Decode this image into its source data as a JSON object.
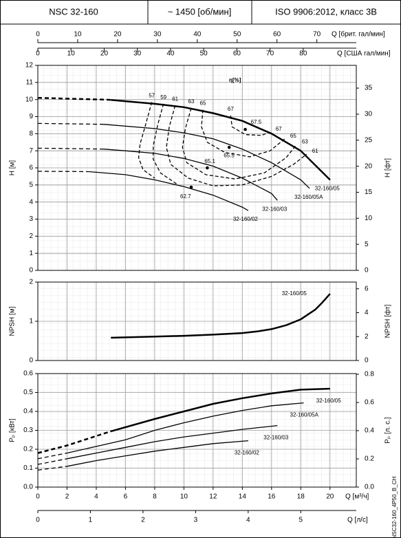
{
  "header": {
    "model": "NSC 32-160",
    "speed": "~ 1450 [об/мин]",
    "standard": "ISO 9906:2012, класс 3B"
  },
  "code": "NSC32-160_4P50_B_CH",
  "x_axes": {
    "primary": {
      "label": "Q [м³/ч]",
      "xlim": [
        0,
        21.8
      ],
      "xticks": [
        0,
        2,
        4,
        6,
        8,
        10,
        12,
        14,
        16,
        18,
        20
      ]
    },
    "top": [
      {
        "label": "Q [брит. гал/мин]",
        "xlim": [
          0,
          79.9
        ],
        "xticks": [
          0,
          10,
          20,
          30,
          40,
          50,
          60,
          70
        ]
      },
      {
        "label": "Q [США гал/мин]",
        "xlim": [
          0,
          96.0
        ],
        "xticks": [
          0,
          10,
          20,
          30,
          40,
          50,
          60,
          70,
          80
        ]
      }
    ],
    "bottom": [
      {
        "label": "Q [л/с]",
        "xlim": [
          0,
          6.056
        ],
        "xticks": [
          0,
          1,
          2,
          3,
          4,
          5
        ]
      }
    ]
  },
  "chart_data": [
    {
      "type": "line",
      "ylabel": "H [м]",
      "ylim": [
        0,
        12
      ],
      "yticks": [
        0,
        1,
        2,
        3,
        4,
        5,
        6,
        7,
        8,
        9,
        10,
        11,
        12
      ],
      "y2label": "H [фт]",
      "y2lim": [
        0,
        39.37
      ],
      "y2ticks": [
        0,
        5,
        10,
        15,
        20,
        25,
        30,
        35
      ],
      "grid": true,
      "series": [
        {
          "color": "#000000",
          "style": "dashed",
          "width": 2.5,
          "x": [
            0,
            2,
            4.5,
            5
          ],
          "values": [
            10.1,
            10.05,
            10.0,
            9.98
          ]
        },
        {
          "name": "32-160/05",
          "color": "#000000",
          "style": "solid",
          "width": 2.5,
          "x": [
            5,
            8,
            10,
            12,
            14,
            16,
            18,
            20
          ],
          "values": [
            9.98,
            9.75,
            9.55,
            9.2,
            8.75,
            8.0,
            7.0,
            5.3
          ]
        },
        {
          "color": "#000000",
          "style": "dashed",
          "width": 1.3,
          "x": [
            0,
            2,
            4.5
          ],
          "values": [
            8.6,
            8.58,
            8.55
          ]
        },
        {
          "name": "32-160/05A",
          "color": "#000000",
          "style": "solid",
          "width": 1.3,
          "x": [
            4.5,
            8,
            10,
            12,
            14,
            16,
            18,
            18.6
          ],
          "values": [
            8.55,
            8.3,
            8.05,
            7.7,
            7.1,
            6.3,
            5.3,
            4.8
          ]
        },
        {
          "color": "#000000",
          "style": "dashed",
          "width": 1.3,
          "x": [
            0,
            2,
            4.5
          ],
          "values": [
            7.15,
            7.13,
            7.1
          ]
        },
        {
          "name": "32-160/03",
          "color": "#000000",
          "style": "solid",
          "width": 1.3,
          "x": [
            4.5,
            6,
            8,
            10,
            12,
            14,
            16,
            16.4
          ],
          "values": [
            7.1,
            7.0,
            6.85,
            6.55,
            6.1,
            5.4,
            4.5,
            4.1
          ]
        },
        {
          "color": "#000000",
          "style": "dashed",
          "width": 1.3,
          "x": [
            0,
            2,
            3.5
          ],
          "values": [
            5.8,
            5.79,
            5.78
          ]
        },
        {
          "name": "32-160/02",
          "color": "#000000",
          "style": "solid",
          "width": 1.3,
          "x": [
            3.5,
            6,
            8,
            10,
            12,
            14,
            14.4
          ],
          "values": [
            5.78,
            5.6,
            5.3,
            4.9,
            4.4,
            3.7,
            3.5
          ]
        }
      ],
      "efficiency": {
        "label": "η[%]",
        "color": "#000000",
        "contours": [
          {
            "value": 57,
            "x": [
              7.8,
              7.4,
              7.0,
              6.9,
              7.2,
              8.0
            ],
            "y": [
              9.85,
              8.6,
              7.4,
              6.6,
              5.9,
              5.4
            ]
          },
          {
            "value": 59,
            "x": [
              8.6,
              8.2,
              7.9,
              7.9,
              8.4,
              9.6
            ],
            "y": [
              9.75,
              8.5,
              7.3,
              6.5,
              5.7,
              5.0
            ]
          },
          {
            "value": 61,
            "x": [
              9.4,
              9.0,
              8.8,
              9.1,
              10.3,
              12.0,
              14.0,
              16.0,
              17.5,
              18.4
            ],
            "y": [
              9.65,
              8.4,
              7.2,
              6.2,
              5.4,
              4.95,
              5.0,
              5.5,
              6.2,
              6.8
            ]
          },
          {
            "value": 63,
            "x": [
              10.5,
              10.1,
              9.9,
              10.2,
              11.5,
              13.5,
              15.5,
              17.0,
              17.7
            ],
            "y": [
              9.5,
              8.3,
              7.2,
              6.3,
              5.6,
              5.35,
              5.7,
              6.6,
              7.35
            ]
          },
          {
            "value": 65,
            "x": [
              11.3,
              11.2,
              11.6,
              12.8,
              14.5,
              15.9,
              16.9
            ],
            "y": [
              9.4,
              8.4,
              7.5,
              6.9,
              6.65,
              7.0,
              7.7
            ]
          },
          {
            "value": 67,
            "x": [
              13.2,
              13.3,
              14.2,
              15.3,
              15.9
            ],
            "y": [
              9.06,
              8.4,
              7.95,
              7.9,
              8.1
            ]
          }
        ],
        "points": [
          {
            "value": 67.5,
            "x": 14.2,
            "y": 8.25
          },
          {
            "value": 65.5,
            "x": 13.1,
            "y": 7.2
          },
          {
            "value": 65.1,
            "x": 11.6,
            "y": 6.0
          },
          {
            "value": 62.7,
            "x": 10.5,
            "y": 4.87
          }
        ]
      }
    },
    {
      "type": "line",
      "ylabel": "NPSH [м]",
      "ylim": [
        0,
        2
      ],
      "yticks": [
        0,
        1,
        2
      ],
      "y2label": "NPSH [фт]",
      "y2lim": [
        0,
        6.56
      ],
      "y2ticks": [
        0,
        2,
        4,
        6
      ],
      "grid": true,
      "series": [
        {
          "name": "32-160/05",
          "color": "#000000",
          "style": "solid",
          "width": 2.5,
          "x": [
            5,
            8,
            10,
            12,
            14,
            15,
            16,
            17,
            18,
            19,
            19.4,
            20
          ],
          "values": [
            0.58,
            0.61,
            0.63,
            0.66,
            0.7,
            0.74,
            0.8,
            0.9,
            1.05,
            1.3,
            1.45,
            1.7
          ]
        }
      ]
    },
    {
      "type": "line",
      "ylabel": "Pₚ [кВт]",
      "ylim": [
        0,
        0.6
      ],
      "yticks": [
        {
          "value": 0,
          "label": "0.0"
        },
        0.1,
        0.2,
        0.3,
        0.4,
        0.5,
        0.6
      ],
      "y2label": "Pₚ [л. с.]",
      "y2lim": [
        0,
        0.805
      ],
      "y2ticks": [
        {
          "value": 0,
          "label": "0.0"
        },
        0.2,
        0.4,
        0.6,
        0.8
      ],
      "grid": true,
      "series": [
        {
          "color": "#000000",
          "style": "dashed",
          "width": 2.5,
          "x": [
            0,
            2,
            5
          ],
          "values": [
            0.18,
            0.22,
            0.295
          ]
        },
        {
          "name": "32-160/05",
          "color": "#000000",
          "style": "solid",
          "width": 2.5,
          "x": [
            5,
            8,
            10,
            12,
            14,
            16,
            18,
            20
          ],
          "values": [
            0.295,
            0.36,
            0.4,
            0.44,
            0.47,
            0.495,
            0.515,
            0.52
          ]
        },
        {
          "color": "#000000",
          "style": "dashed",
          "width": 1.3,
          "x": [
            0,
            2
          ],
          "values": [
            0.15,
            0.18
          ]
        },
        {
          "name": "32-160/05A",
          "color": "#000000",
          "style": "solid",
          "width": 1.3,
          "x": [
            2,
            4,
            6,
            8,
            10,
            12,
            14,
            16,
            18.2
          ],
          "values": [
            0.18,
            0.215,
            0.25,
            0.3,
            0.34,
            0.375,
            0.405,
            0.43,
            0.445
          ]
        },
        {
          "color": "#000000",
          "style": "dashed",
          "width": 1.3,
          "x": [
            0,
            2
          ],
          "values": [
            0.12,
            0.15
          ]
        },
        {
          "name": "32-160/03",
          "color": "#000000",
          "style": "solid",
          "width": 1.3,
          "x": [
            2,
            4,
            6,
            8,
            10,
            12,
            14,
            16.4
          ],
          "values": [
            0.15,
            0.18,
            0.21,
            0.24,
            0.265,
            0.285,
            0.305,
            0.325
          ]
        },
        {
          "color": "#000000",
          "style": "dashed",
          "width": 1.3,
          "x": [
            0,
            2
          ],
          "values": [
            0.09,
            0.11
          ]
        },
        {
          "name": "32-160/02",
          "color": "#000000",
          "style": "solid",
          "width": 1.3,
          "x": [
            2,
            4,
            6,
            8,
            10,
            12,
            14.4
          ],
          "values": [
            0.11,
            0.14,
            0.165,
            0.19,
            0.21,
            0.23,
            0.245
          ]
        }
      ]
    }
  ]
}
